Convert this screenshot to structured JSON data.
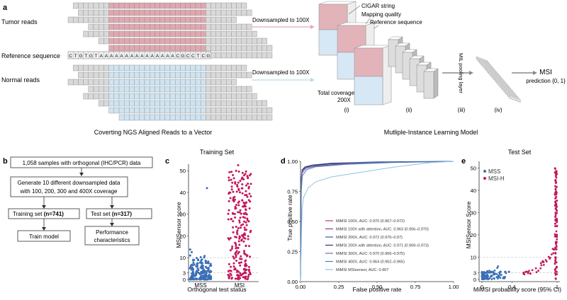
{
  "panel_a": {
    "letter": "a",
    "tumor_label": "Tumor reads",
    "reference_label": "Reference sequence",
    "normal_label": "Normal reads",
    "reference_sequence": "CTGTGTAAAAAAAAAAAAAAACGCCTCG",
    "downsample_tumor": "Downsampled to 100X",
    "downsample_normal": "Downsampled to 100X",
    "channel_labels": [
      "CIGAR string",
      "Mapping quality",
      "Reference sequence"
    ],
    "total_coverage_line1": "Total coverage",
    "total_coverage_line2": "200X",
    "stage_labels": [
      "(i)",
      "(ii)",
      "(iii)",
      "(iv)"
    ],
    "mil_pooling": "MIL pooling layer",
    "msi_line1": "MSI",
    "msi_line2": "prediction {0, 1}",
    "caption_left": "Coverting NGS Aligned Reads to a Vector",
    "caption_right": "Mutliple-Instance Learning Model",
    "colors": {
      "tumor": "#e0a8b0",
      "normal": "#cfe4f2",
      "read": "#d9d9d9",
      "edge": "#888888"
    }
  },
  "panel_b": {
    "letter": "b",
    "box1": "1,058 samples with orthogonal (IHC/PCR) data",
    "box2_line1": "Generate 10 different downsampled data",
    "box2_line2": "with 100, 200, 300 and 400X coverage",
    "training_set": "Training set",
    "training_n": "(n=741)",
    "test_set": "Test set",
    "test_n": "(n=317)",
    "train_model": "Train model",
    "perf_line1": "Performance",
    "perf_line2": "characteristics"
  },
  "panel_c": {
    "letter": "c",
    "title": "Training Set",
    "ylabel": "MSISensor score",
    "xlabel": "Orthogonal test status",
    "categories": [
      "MSS",
      "MSI"
    ],
    "yticks": [
      "0",
      "3",
      "10",
      "20",
      "30",
      "40",
      "50"
    ],
    "colors": {
      "MSS": "#3b6fb6",
      "MSI": "#c2185b"
    }
  },
  "panel_d": {
    "letter": "d",
    "ylabel": "True positive rate",
    "xlabel": "False positive rate",
    "xticks": [
      "0.00",
      "0.25",
      "0.50",
      "0.75",
      "1.00"
    ],
    "yticks": [
      "0.00",
      "0.25",
      "0.50",
      "0.75",
      "1.00"
    ],
    "legend": [
      {
        "label": "MiMSI 100X, AUC: 0.970 (0.967–0.972)",
        "color": "#c0396b"
      },
      {
        "label": "MiMSI 100X with attention, AUC: 0.963 (0.956–0.970)",
        "color": "#8a3c8a"
      },
      {
        "label": "MiMSI 200X, AUC: 0.972 (0.970–0.97)",
        "color": "#3f5aa8"
      },
      {
        "label": "MiMSI 200X with attention, AUC: 0.971 (0.969–0.973)",
        "color": "#333366"
      },
      {
        "label": "MiMSI 300X, AUC: 0.970 (0.966–0.975)",
        "color": "#6f6fae"
      },
      {
        "label": "MiMSI 400X, AUC: 0.964 (0.962–0.965)",
        "color": "#4d7fb8"
      },
      {
        "label": "MiMSI MSIsensor, AUC: 0.907",
        "color": "#8fc3e0"
      }
    ]
  },
  "panel_e": {
    "letter": "e",
    "title": "Test Set",
    "ylabel": "MSISensor Score",
    "xlabel": "MiMSI probability score (95% CI)",
    "xticks": [
      "0",
      "0.4",
      "1"
    ],
    "yticks": [
      "0",
      "3",
      "10",
      "20",
      "30",
      "40",
      "50"
    ],
    "legend": [
      {
        "label": "MSS",
        "color": "#3b6fb6"
      },
      {
        "label": "MSI-H",
        "color": "#c2185b"
      }
    ]
  },
  "chart_data": [
    {
      "type": "scatter",
      "title": "Training Set",
      "xlabel": "Orthogonal test status",
      "ylabel": "MSISensor score",
      "categories": [
        "MSS",
        "MSI"
      ],
      "ylim": [
        -1,
        53
      ],
      "series": [
        {
          "name": "MSS",
          "y_range": [
            0,
            14
          ],
          "outliers": [
            42
          ],
          "n_approx": 180
        },
        {
          "name": "MSI",
          "y_range": [
            0,
            53
          ],
          "n_approx": 250
        }
      ]
    },
    {
      "type": "line",
      "xlabel": "False positive rate",
      "ylabel": "True positive rate",
      "xlim": [
        0,
        1
      ],
      "ylim": [
        0,
        1
      ],
      "series": [
        {
          "name": "MiMSI 100X",
          "auc": 0.97,
          "x": [
            0,
            0.005,
            0.01,
            0.03,
            0.08,
            0.2,
            0.5,
            1
          ],
          "y": [
            0,
            0.85,
            0.92,
            0.95,
            0.965,
            0.98,
            0.99,
            1
          ]
        },
        {
          "name": "MiMSI 100X with attention",
          "auc": 0.963,
          "x": [
            0,
            0.005,
            0.01,
            0.03,
            0.1,
            0.25,
            0.5,
            1
          ],
          "y": [
            0,
            0.8,
            0.9,
            0.94,
            0.96,
            0.975,
            0.99,
            1
          ]
        },
        {
          "name": "MiMSI 200X",
          "auc": 0.972,
          "x": [
            0,
            0.005,
            0.01,
            0.03,
            0.08,
            0.2,
            0.5,
            1
          ],
          "y": [
            0,
            0.86,
            0.93,
            0.955,
            0.97,
            0.985,
            0.995,
            1
          ]
        },
        {
          "name": "MiMSI 200X with attention",
          "auc": 0.971,
          "x": [
            0,
            0.005,
            0.01,
            0.03,
            0.08,
            0.2,
            0.5,
            1
          ],
          "y": [
            0,
            0.84,
            0.92,
            0.95,
            0.965,
            0.98,
            0.99,
            1
          ]
        },
        {
          "name": "MiMSI 300X",
          "auc": 0.97,
          "x": [
            0,
            0.005,
            0.01,
            0.04,
            0.1,
            0.25,
            0.5,
            1
          ],
          "y": [
            0,
            0.82,
            0.91,
            0.945,
            0.962,
            0.978,
            0.99,
            1
          ]
        },
        {
          "name": "MiMSI 400X",
          "auc": 0.964,
          "x": [
            0,
            0.005,
            0.012,
            0.04,
            0.1,
            0.3,
            0.6,
            1
          ],
          "y": [
            0,
            0.75,
            0.88,
            0.93,
            0.955,
            0.975,
            0.99,
            1
          ]
        },
        {
          "name": "MiMSI MSIsensor",
          "auc": 0.907,
          "x": [
            0,
            0.01,
            0.02,
            0.05,
            0.1,
            0.2,
            0.35,
            0.6,
            0.85,
            1
          ],
          "y": [
            0,
            0.6,
            0.7,
            0.78,
            0.83,
            0.87,
            0.9,
            0.95,
            0.99,
            1
          ]
        }
      ]
    },
    {
      "type": "scatter",
      "title": "Test Set",
      "xlabel": "MiMSI probability score (95% CI)",
      "ylabel": "MSISensor Score",
      "xlim": [
        0,
        1
      ],
      "ylim": [
        -1,
        53
      ],
      "series": [
        {
          "name": "MSS",
          "x_range": [
            0,
            0.4
          ],
          "y_range": [
            0,
            5
          ]
        },
        {
          "name": "MSI-H",
          "x_range": [
            0.6,
            1
          ],
          "y_range": [
            0,
            50
          ]
        }
      ]
    }
  ]
}
